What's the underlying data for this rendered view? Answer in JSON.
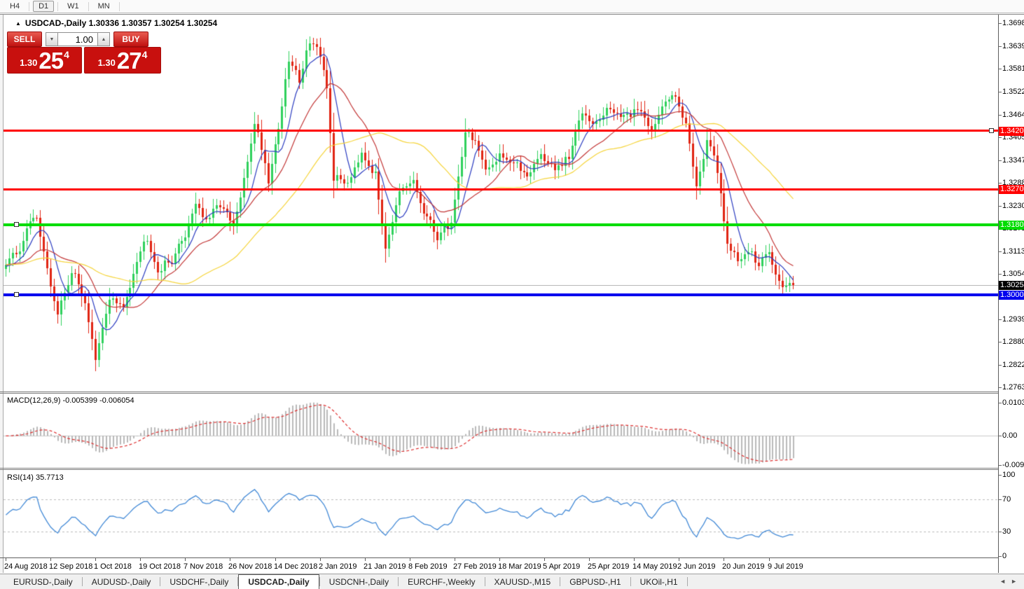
{
  "toolbar": {
    "timeframes": [
      "H4",
      "D1",
      "W1",
      "MN"
    ],
    "active": "D1"
  },
  "chart_header": {
    "expand_icon": "▲",
    "symbol": "USDCAD-,Daily",
    "ohlc": "1.30336 1.30357 1.30254 1.30254"
  },
  "trade_panel": {
    "sell_label": "SELL",
    "buy_label": "BUY",
    "volume": "1.00",
    "spin_down_icon": "▼",
    "spin_up_icon": "▲",
    "sell_quote": {
      "prefix": "1.30",
      "big": "25",
      "sup": "4"
    },
    "buy_quote": {
      "prefix": "1.30",
      "big": "27",
      "sup": "4"
    }
  },
  "indicators": {
    "macd_label": "MACD(12,26,9) -0.005399 -0.006054",
    "rsi_label": "RSI(14) 35.7713"
  },
  "chart_data": {
    "type": "candlestick",
    "symbol": "USDCAD",
    "period": "Daily",
    "price_min": 1.275,
    "price_max": 1.372,
    "candle_count": 229,
    "first_candle_x": 8,
    "candle_spacing": 4.93,
    "label_every": 13,
    "x_labels": [
      "24 Aug 2018",
      "12 Sep 2018",
      "1 Oct 2018",
      "19 Oct 2018",
      "7 Nov 2018",
      "26 Nov 2018",
      "14 Dec 2018",
      "2 Jan 2019",
      "21 Jan 2019",
      "8 Feb 2019",
      "27 Feb 2019",
      "18 Mar 2019",
      "5 Apr 2019",
      "25 Apr 2019",
      "14 May 2019",
      "2 Jun 2019",
      "20 Jun 2019",
      "9 Jul 2019"
    ],
    "y_ticks": [
      "1.36980",
      "1.36395",
      "1.35810",
      "1.35225",
      "1.34640",
      "1.34055",
      "1.33470",
      "1.32885",
      "1.32300",
      "1.31715",
      "1.31130",
      "1.30545",
      "1.29390",
      "1.28805",
      "1.28220",
      "1.27635"
    ],
    "price_waypoints": [
      [
        0,
        1.3075
      ],
      [
        4,
        1.312
      ],
      [
        7,
        1.3185
      ],
      [
        9,
        1.3205
      ],
      [
        12,
        1.306
      ],
      [
        15,
        1.295
      ],
      [
        19,
        1.3062
      ],
      [
        23,
        1.2985
      ],
      [
        26,
        1.2828
      ],
      [
        30,
        1.2995
      ],
      [
        34,
        1.2962
      ],
      [
        38,
        1.3095
      ],
      [
        41,
        1.315
      ],
      [
        44,
        1.3062
      ],
      [
        48,
        1.309
      ],
      [
        52,
        1.3155
      ],
      [
        55,
        1.324
      ],
      [
        58,
        1.3185
      ],
      [
        62,
        1.3235
      ],
      [
        66,
        1.317
      ],
      [
        69,
        1.329
      ],
      [
        72,
        1.3445
      ],
      [
        74,
        1.338
      ],
      [
        76,
        1.3295
      ],
      [
        79,
        1.343
      ],
      [
        82,
        1.36
      ],
      [
        85,
        1.3555
      ],
      [
        88,
        1.3655
      ],
      [
        90,
        1.3635
      ],
      [
        93,
        1.353
      ],
      [
        95,
        1.33
      ],
      [
        99,
        1.329
      ],
      [
        103,
        1.337
      ],
      [
        107,
        1.3305
      ],
      [
        110,
        1.313
      ],
      [
        114,
        1.3255
      ],
      [
        118,
        1.329
      ],
      [
        121,
        1.321
      ],
      [
        125,
        1.315
      ],
      [
        129,
        1.3185
      ],
      [
        133,
        1.342
      ],
      [
        136,
        1.3395
      ],
      [
        139,
        1.331
      ],
      [
        143,
        1.3365
      ],
      [
        147,
        1.3335
      ],
      [
        151,
        1.331
      ],
      [
        155,
        1.336
      ],
      [
        159,
        1.3318
      ],
      [
        163,
        1.335
      ],
      [
        167,
        1.3475
      ],
      [
        171,
        1.344
      ],
      [
        175,
        1.348
      ],
      [
        179,
        1.345
      ],
      [
        183,
        1.348
      ],
      [
        187,
        1.343
      ],
      [
        191,
        1.349
      ],
      [
        194,
        1.352
      ],
      [
        197,
        1.3435
      ],
      [
        200,
        1.3285
      ],
      [
        203,
        1.3395
      ],
      [
        206,
        1.332
      ],
      [
        209,
        1.3135
      ],
      [
        212,
        1.3082
      ],
      [
        215,
        1.312
      ],
      [
        218,
        1.3072
      ],
      [
        221,
        1.3112
      ],
      [
        224,
        1.3032
      ],
      [
        228,
        1.30254
      ]
    ],
    "hlines": [
      {
        "price": 1.34206,
        "label": "1.34206",
        "color": "#ff0000",
        "thickness": 3,
        "handle": "right"
      },
      {
        "price": 1.32701,
        "label": "1.32701",
        "color": "#ff0000",
        "thickness": 3,
        "handle": "none"
      },
      {
        "price": 1.31801,
        "label": "1.31801",
        "color": "#00dd00",
        "thickness": 4,
        "handle": "left"
      },
      {
        "price": 1.30004,
        "label": "1.30004",
        "color": "#0000ee",
        "thickness": 4,
        "handle": "left"
      }
    ],
    "current_price": {
      "value": 1.30254,
      "label": "1.30254"
    },
    "moving_averages": [
      {
        "period": 7,
        "color": "#2b3cc0"
      },
      {
        "period": 18,
        "color": "#c23636"
      },
      {
        "period": 42,
        "color": "#f5d43a"
      }
    ],
    "macd": {
      "fast": 12,
      "slow": 26,
      "signal": 9,
      "value": -0.005399,
      "signal_value": -0.006054,
      "hist_color": "#b9b9b9",
      "signal_color": "#dd2f2f",
      "axis": [
        {
          "label": "0.010311",
          "value": 0.010311
        },
        {
          "label": "0.00",
          "value": 0
        },
        {
          "label": "-0.00920",
          "value": -0.0092
        }
      ]
    },
    "rsi": {
      "period": 14,
      "value": 35.7713,
      "levels": [
        70,
        30
      ],
      "color": "#4289d6",
      "axis": [
        {
          "label": "100",
          "value": 100
        },
        {
          "label": "70",
          "value": 70
        },
        {
          "label": "30",
          "value": 30
        },
        {
          "label": "0",
          "value": 0
        }
      ]
    }
  },
  "colors": {
    "bull": "#2fd05c",
    "bear": "#e02413",
    "current_price_line": "#b8b8b8",
    "current_price_tag_bg": "#000000",
    "rsi_level_line": "#bbbbbb",
    "macd_zero_line": "#c9c9c9"
  },
  "tabs": {
    "items": [
      "EURUSD-,Daily",
      "AUDUSD-,Daily",
      "USDCHF-,Daily",
      "USDCAD-,Daily",
      "USDCNH-,Daily",
      "EURCHF-,Weekly",
      "XAUUSD-,M15",
      "GBPUSD-,H1",
      "UKOil-,H1"
    ],
    "active": "USDCAD-,Daily",
    "scroll_left_icon": "◄",
    "scroll_right_icon": "►"
  }
}
